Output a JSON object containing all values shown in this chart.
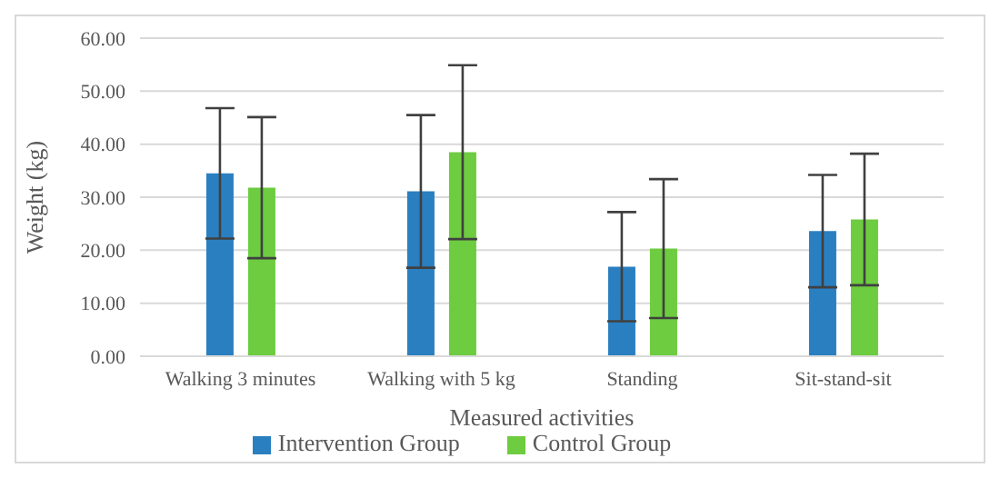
{
  "chart_data": {
    "type": "bar",
    "xlabel": "Measured activities",
    "ylabel": "Weight (kg)",
    "categories": [
      "Walking 3 minutes",
      "Walking with 5 kg",
      "Standing",
      "Sit-stand-sit"
    ],
    "series": [
      {
        "name": "Intervention Group",
        "color": "#2a7fc0",
        "values": [
          34.5,
          31.1,
          16.9,
          23.6
        ],
        "errors": [
          12.3,
          14.4,
          10.3,
          10.6
        ]
      },
      {
        "name": "Control Group",
        "color": "#6dcc3f",
        "values": [
          31.8,
          38.5,
          20.3,
          25.8
        ],
        "errors": [
          13.3,
          16.4,
          13.1,
          12.4
        ]
      }
    ],
    "ylim": [
      0,
      60
    ],
    "yticks": [
      {
        "value": 0,
        "label": "0.00"
      },
      {
        "value": 10,
        "label": "10.00"
      },
      {
        "value": 20,
        "label": "20.00"
      },
      {
        "value": 30,
        "label": "30.00"
      },
      {
        "value": 40,
        "label": "40.00"
      },
      {
        "value": 50,
        "label": "50.00"
      },
      {
        "value": 60,
        "label": "60.00"
      }
    ],
    "grid": "y",
    "legend": "bottom"
  }
}
